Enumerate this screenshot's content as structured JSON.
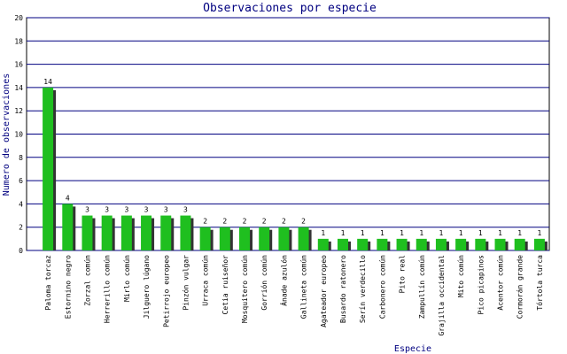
{
  "chart_data": {
    "type": "bar",
    "title": "Observaciones por especie",
    "x_label": "Especie",
    "y_label": "Numero de observaciones",
    "categories": [
      "Paloma torcaz",
      "Estornino negro",
      "Zorzal común",
      "Herrerillo común",
      "Mirlo común",
      "Jilguero lúgano",
      "Petirrojo europeo",
      "Pinzón vulgar",
      "Urraca común",
      "Cetia ruiseñor",
      "Mosquitero común",
      "Gorrión común",
      "Ánade azulón",
      "Gallineta común",
      "Agateador europeo",
      "Busardo ratonero",
      "Serín verdecillo",
      "Carbonero común",
      "Pito real",
      "Zampullín común",
      "Grajilla occidental",
      "Mito común",
      "Pico picapinos",
      "Acentor común",
      "Cormorán grande",
      "Tórtola turca"
    ],
    "values": [
      14,
      4,
      3,
      3,
      3,
      3,
      3,
      3,
      2,
      2,
      2,
      2,
      2,
      2,
      1,
      1,
      1,
      1,
      1,
      1,
      1,
      1,
      1,
      1,
      1,
      1
    ],
    "color": "#1fbf1f",
    "shadow_color": "#333333",
    "grid_color": "#000080",
    "ylim": [
      0,
      20
    ],
    "yticks": [
      0,
      2,
      4,
      6,
      8,
      10,
      12,
      14,
      16,
      18,
      20
    ],
    "grid": true
  }
}
